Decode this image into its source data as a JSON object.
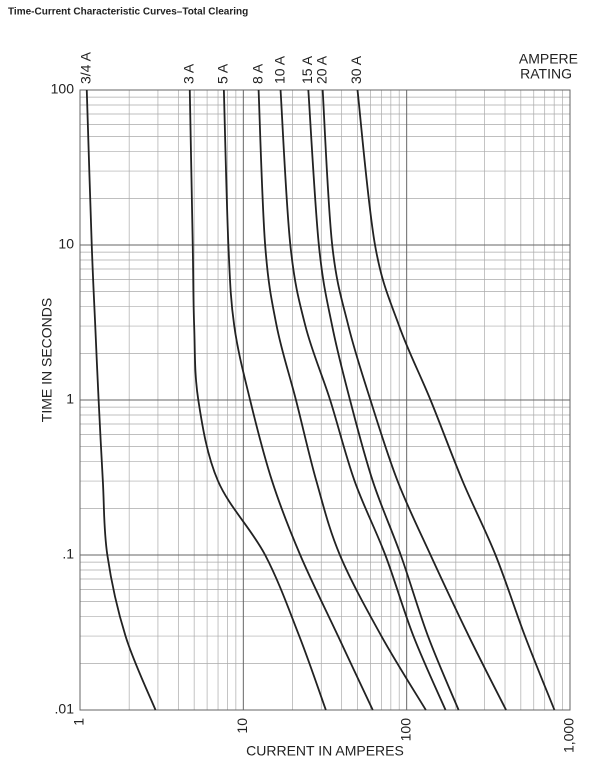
{
  "chart_data": {
    "type": "line",
    "title": "Time-Current Characteristic Curves–Total Clearing",
    "xlabel": "CURRENT IN AMPERES",
    "ylabel": "TIME IN SECONDS",
    "legend_title": [
      "AMPERE",
      "RATING"
    ],
    "xscale": "log",
    "yscale": "log",
    "xlim": [
      1,
      1000
    ],
    "ylim": [
      0.01,
      100
    ],
    "xticks": [
      1,
      10,
      100,
      {
        "value": 1000,
        "label": "1,000"
      }
    ],
    "yticks": [
      {
        "value": 0.01,
        "label": ".01"
      },
      {
        "value": 0.1,
        "label": ".1"
      },
      1,
      10,
      100
    ],
    "grid": true,
    "minor_grid": true,
    "series": [
      {
        "name": "3/4 A",
        "color": "#222222",
        "x": [
          1.1,
          1.18,
          1.24,
          1.3,
          1.38,
          1.47,
          1.9,
          2.9
        ],
        "values": [
          100,
          10,
          3,
          1,
          0.3,
          0.1,
          0.03,
          0.01
        ]
      },
      {
        "name": "3 A",
        "color": "#222222",
        "x": [
          4.7,
          4.9,
          5.0,
          5.3,
          7.0,
          13.6,
          22,
          32
        ],
        "values": [
          100,
          10,
          3,
          1,
          0.3,
          0.1,
          0.03,
          0.01
        ]
      },
      {
        "name": "5 A",
        "color": "#222222",
        "x": [
          7.6,
          8.1,
          8.8,
          11,
          15,
          22.3,
          38,
          62
        ],
        "values": [
          100,
          10,
          3,
          1,
          0.3,
          0.1,
          0.03,
          0.01
        ]
      },
      {
        "name": "8 A",
        "color": "#222222",
        "x": [
          12.4,
          13.6,
          16,
          21,
          28,
          39,
          70,
          131
        ],
        "values": [
          100,
          10,
          3,
          1,
          0.3,
          0.1,
          0.03,
          0.01
        ]
      },
      {
        "name": "10 A",
        "color": "#222222",
        "x": [
          16.9,
          19.4,
          24,
          34,
          48,
          74,
          110,
          173
        ],
        "values": [
          100,
          10,
          3,
          1,
          0.3,
          0.1,
          0.03,
          0.01
        ]
      },
      {
        "name": "15 A",
        "color": "#222222",
        "x": [
          25,
          29,
          35,
          45,
          62,
          92,
          135,
          208
        ],
        "values": [
          100,
          10,
          3,
          1,
          0.3,
          0.1,
          0.03,
          0.01
        ]
      },
      {
        "name": "20 A",
        "color": "#222222",
        "x": [
          30.6,
          35,
          44,
          60,
          88,
          140,
          240,
          406
        ],
        "values": [
          100,
          10,
          3,
          1,
          0.3,
          0.1,
          0.03,
          0.01
        ]
      },
      {
        "name": "30 A",
        "color": "#222222",
        "x": [
          50,
          64,
          90,
          140,
          220,
          350,
          530,
          803
        ],
        "values": [
          100,
          10,
          3,
          1,
          0.3,
          0.1,
          0.03,
          0.01
        ]
      }
    ]
  }
}
